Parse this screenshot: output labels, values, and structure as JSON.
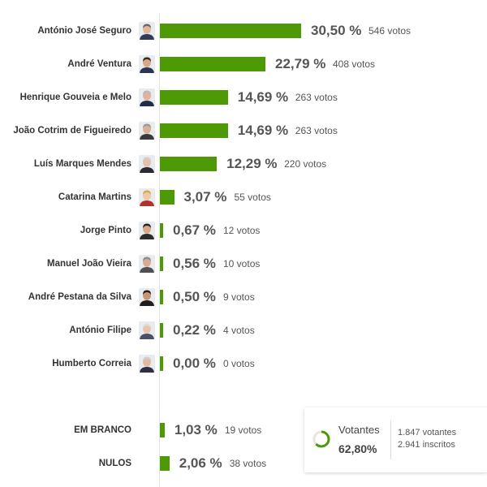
{
  "chart_data": {
    "type": "bar",
    "orientation": "horizontal",
    "bar_color": "#4e9a06",
    "series": [
      {
        "name": "António José Seguro",
        "pct_label": "30,50 %",
        "value": 30.5,
        "votes_label": "546 votos",
        "votes": 546
      },
      {
        "name": "André Ventura",
        "pct_label": "22,79 %",
        "value": 22.79,
        "votes_label": "408 votos",
        "votes": 408
      },
      {
        "name": "Henrique Gouveia e Melo",
        "pct_label": "14,69 %",
        "value": 14.69,
        "votes_label": "263 votos",
        "votes": 263
      },
      {
        "name": "João Cotrim de Figueiredo",
        "pct_label": "14,69 %",
        "value": 14.69,
        "votes_label": "263 votos",
        "votes": 263
      },
      {
        "name": "Luís Marques Mendes",
        "pct_label": "12,29 %",
        "value": 12.29,
        "votes_label": "220 votos",
        "votes": 220
      },
      {
        "name": "Catarina Martins",
        "pct_label": "3,07 %",
        "value": 3.07,
        "votes_label": "55 votos",
        "votes": 55
      },
      {
        "name": "Jorge Pinto",
        "pct_label": "0,67 %",
        "value": 0.67,
        "votes_label": "12 votos",
        "votes": 12
      },
      {
        "name": "Manuel João Vieira",
        "pct_label": "0,56 %",
        "value": 0.56,
        "votes_label": "10 votos",
        "votes": 10
      },
      {
        "name": "André Pestana da Silva",
        "pct_label": "0,50 %",
        "value": 0.5,
        "votes_label": "9 votos",
        "votes": 9
      },
      {
        "name": "António Filipe",
        "pct_label": "0,22 %",
        "value": 0.22,
        "votes_label": "4 votos",
        "votes": 4
      },
      {
        "name": "Humberto Correia",
        "pct_label": "0,00 %",
        "value": 0.0,
        "votes_label": "0 votos",
        "votes": 0
      }
    ],
    "other": [
      {
        "name": "EM BRANCO",
        "pct_label": "1,03 %",
        "value": 1.03,
        "votes_label": "19 votos",
        "votes": 19
      },
      {
        "name": "NULOS",
        "pct_label": "2,06 %",
        "value": 2.06,
        "votes_label": "38 votos",
        "votes": 38
      }
    ]
  },
  "turnout": {
    "label": "Votantes",
    "pct_label": "62,80%",
    "value": 62.8,
    "voters_label": "1.847 votantes",
    "registered_label": "2.941 inscritos",
    "ring_color": "#4e9a06",
    "ring_track_color": "#e6e6e6"
  }
}
